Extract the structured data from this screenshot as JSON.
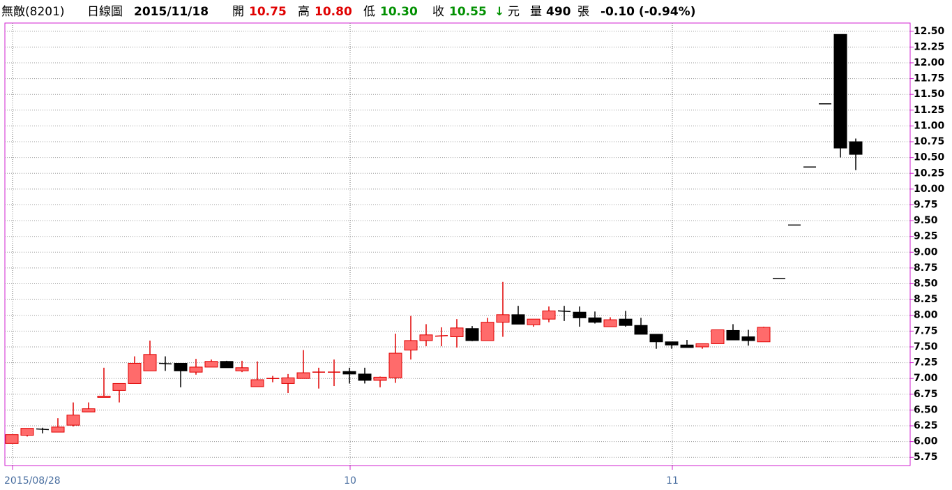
{
  "header": {
    "name": "無敵(8201)",
    "period": "日線圖",
    "date": "2015/11/18",
    "open_label": "開",
    "open": "10.75",
    "high_label": "高",
    "high": "10.80",
    "low_label": "低",
    "low": "10.30",
    "close_label": "收",
    "close": "10.55",
    "arrow": "↓",
    "unit": "元",
    "volume_label": "量",
    "volume": "490",
    "volume_unit": "張",
    "change": "-0.10 (-0.94%)"
  },
  "chart_data": {
    "type": "candlestick",
    "categories": [
      "2015/08/28",
      null,
      null,
      null,
      null,
      null,
      null,
      null,
      null,
      null,
      null,
      null,
      null,
      null,
      null,
      null,
      null,
      null,
      null,
      null,
      null,
      null,
      "10",
      null,
      null,
      null,
      null,
      null,
      null,
      null,
      null,
      null,
      null,
      null,
      null,
      null,
      null,
      null,
      null,
      null,
      null,
      null,
      null,
      "11",
      null,
      null,
      null,
      null,
      null,
      null,
      null,
      null,
      null,
      null,
      null,
      null
    ],
    "open": [
      5.97,
      6.1,
      6.2,
      6.15,
      6.26,
      6.47,
      6.7,
      6.81,
      6.92,
      7.12,
      7.24,
      7.24,
      7.1,
      7.18,
      7.27,
      7.12,
      6.87,
      7.0,
      6.92,
      7.0,
      7.1,
      7.1,
      7.11,
      7.07,
      6.97,
      7.01,
      7.45,
      7.6,
      7.67,
      7.66,
      7.79,
      7.6,
      7.89,
      8.01,
      7.85,
      7.94,
      8.07,
      8.05,
      7.96,
      7.82,
      7.94,
      7.84,
      7.7,
      7.58,
      7.53,
      7.5,
      7.55,
      7.76,
      7.66,
      7.58,
      8.58,
      9.43,
      10.35,
      11.35,
      12.45,
      10.75
    ],
    "high": [
      6.11,
      6.21,
      6.22,
      6.37,
      6.62,
      6.62,
      7.17,
      6.92,
      7.35,
      7.6,
      7.35,
      7.24,
      7.31,
      7.3,
      7.28,
      7.28,
      7.27,
      7.04,
      7.07,
      7.45,
      7.17,
      7.3,
      7.17,
      7.17,
      7.03,
      7.71,
      7.99,
      7.86,
      7.81,
      7.94,
      7.83,
      7.96,
      8.53,
      8.15,
      7.94,
      8.14,
      8.15,
      8.14,
      8.06,
      7.97,
      8.07,
      7.96,
      7.7,
      7.58,
      7.61,
      7.55,
      7.77,
      7.86,
      7.77,
      7.82,
      8.58,
      9.43,
      10.35,
      11.35,
      12.45,
      10.8
    ],
    "low": [
      5.97,
      6.08,
      6.13,
      6.15,
      6.24,
      6.47,
      6.7,
      6.62,
      6.92,
      7.12,
      7.12,
      6.86,
      7.06,
      7.18,
      7.17,
      7.1,
      6.87,
      6.94,
      6.77,
      7.0,
      6.84,
      6.88,
      6.92,
      6.92,
      6.86,
      6.93,
      7.3,
      7.51,
      7.51,
      7.49,
      7.59,
      7.6,
      7.66,
      7.86,
      7.82,
      7.89,
      7.91,
      7.82,
      7.87,
      7.82,
      7.82,
      7.7,
      7.47,
      7.47,
      7.49,
      7.47,
      7.55,
      7.61,
      7.52,
      7.58,
      8.58,
      9.43,
      10.35,
      11.35,
      10.5,
      10.3
    ],
    "close": [
      6.11,
      6.21,
      6.19,
      6.23,
      6.42,
      6.52,
      6.72,
      6.92,
      7.24,
      7.38,
      7.23,
      7.12,
      7.18,
      7.27,
      7.17,
      7.17,
      6.98,
      7.0,
      7.01,
      7.09,
      7.1,
      7.1,
      7.07,
      6.97,
      7.02,
      7.4,
      7.6,
      7.69,
      7.68,
      7.8,
      7.6,
      7.89,
      8.01,
      7.86,
      7.94,
      8.07,
      8.06,
      7.96,
      7.89,
      7.93,
      7.84,
      7.7,
      7.58,
      7.53,
      7.49,
      7.55,
      7.77,
      7.61,
      7.6,
      7.81,
      8.58,
      9.43,
      10.35,
      11.35,
      10.65,
      10.55
    ],
    "up_color": "#ff6b6b",
    "up_border": "#e00000",
    "down_color": "#000000",
    "ylim": [
      5.62,
      12.63
    ],
    "yticks": [
      5.75,
      {
        "value": 6.0,
        "label": "6.00"
      },
      6.25,
      {
        "value": 6.5,
        "label": "6.50"
      },
      6.75,
      {
        "value": 7.0,
        "label": "7.00"
      },
      7.25,
      {
        "value": 7.5,
        "label": "7.50"
      },
      7.75,
      {
        "value": 8.0,
        "label": "8.00"
      },
      8.25,
      {
        "value": 8.5,
        "label": "8.50"
      },
      8.75,
      {
        "value": 9.0,
        "label": "9.00"
      },
      9.25,
      {
        "value": 9.5,
        "label": "9.50"
      },
      9.75,
      {
        "value": 10.0,
        "label": "10.00"
      },
      10.25,
      {
        "value": 10.5,
        "label": "10.50"
      },
      10.75,
      {
        "value": 11.0,
        "label": "11.00"
      },
      11.25,
      {
        "value": 11.5,
        "label": "11.50"
      },
      11.75,
      {
        "value": 12.0,
        "label": "12.00"
      },
      12.25,
      {
        "value": 12.5,
        "label": "12.50"
      }
    ],
    "grid": true
  }
}
